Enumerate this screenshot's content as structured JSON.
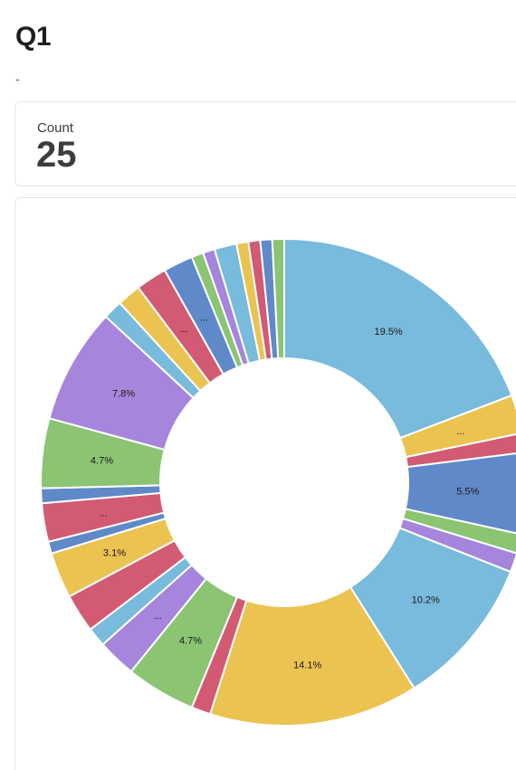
{
  "page": {
    "title": "Q1",
    "subtitle": "-"
  },
  "stat": {
    "label": "Count",
    "value": "25"
  },
  "chart_data": {
    "type": "pie",
    "donut": true,
    "values": [
      19.5,
      2.6,
      1.3,
      5.5,
      1.3,
      1.3,
      10.2,
      14.1,
      1.3,
      4.7,
      2.6,
      1.3,
      2.6,
      3.1,
      0.8,
      2.6,
      1.0,
      4.7,
      7.8,
      1.3,
      1.6,
      2.1,
      2.0,
      0.8,
      0.8,
      1.5,
      0.8,
      0.8,
      0.8,
      0.8
    ],
    "labels": [
      "19.5%",
      "...",
      "",
      "5.5%",
      "",
      "",
      "10.2%",
      "14.1%",
      "",
      "4.7%",
      "...",
      "",
      "",
      "3.1%",
      "",
      "...",
      "",
      "4.7%",
      "7.8%",
      "",
      "",
      "...",
      "...",
      "",
      "",
      "",
      "",
      "",
      "",
      ""
    ],
    "colors": [
      "#78bbdc",
      "#ebc351",
      "#d35a73",
      "#5f89c8",
      "#8bc472",
      "#a685dc",
      "#78bbdc",
      "#ebc351",
      "#d35a73",
      "#8bc472",
      "#a685dc",
      "#78bbdc",
      "#d35a73",
      "#ebc351",
      "#5f89c8",
      "#d35a73",
      "#5f89c8",
      "#8bc472",
      "#a685dc",
      "#78bbdc",
      "#ebc351",
      "#d35a73",
      "#5f89c8",
      "#8bc472",
      "#a685dc",
      "#78bbdc",
      "#ebc351",
      "#d35a73",
      "#5f89c8",
      "#8bc472"
    ],
    "legend": "none"
  }
}
